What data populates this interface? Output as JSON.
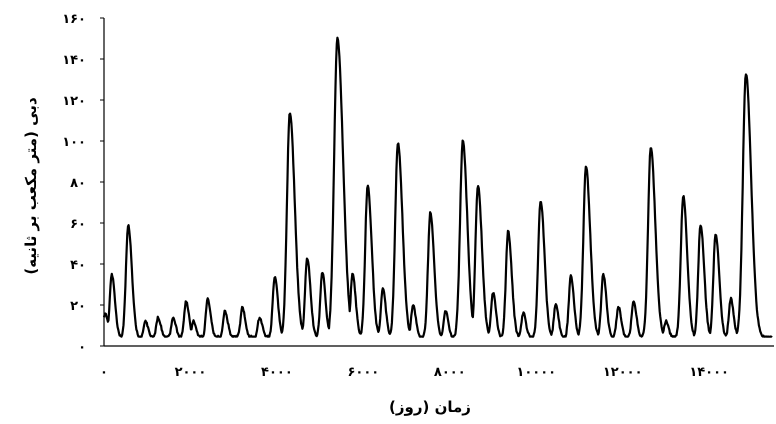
{
  "chart_data": {
    "type": "line",
    "xlabel": "زمان (روز)",
    "ylabel": "دبی (متر مکعب بر ثانیه)",
    "xlim": [
      0,
      15500
    ],
    "ylim": [
      0,
      160
    ],
    "x_ticks": [
      0,
      2000,
      4000,
      6000,
      8000,
      10000,
      12000,
      14000
    ],
    "x_tick_labels": [
      "۰",
      "۲۰۰۰",
      "۴۰۰۰",
      "۶۰۰۰",
      "۸۰۰۰",
      "۱۰۰۰۰",
      "۱۲۰۰۰",
      "۱۴۰۰۰"
    ],
    "y_ticks": [
      0,
      20,
      40,
      60,
      80,
      100,
      120,
      140,
      160
    ],
    "y_tick_labels": [
      "۰",
      "۲۰",
      "۴۰",
      "۶۰",
      "۸۰",
      "۱۰۰",
      "۱۲۰",
      "۱۴۰",
      "۱۶۰"
    ],
    "baseline": 4,
    "grid": false,
    "legend": "none",
    "line_color": "#000000",
    "series": [
      {
        "peaks": [
          [
            30,
            16
          ],
          [
            180,
            35
          ],
          [
            560,
            59
          ],
          [
            960,
            12
          ],
          [
            1250,
            14
          ],
          [
            1600,
            14
          ],
          [
            1900,
            22
          ],
          [
            2070,
            12
          ],
          [
            2400,
            23
          ],
          [
            2800,
            17
          ],
          [
            3200,
            19
          ],
          [
            3600,
            14
          ],
          [
            3950,
            34
          ],
          [
            4300,
            114
          ],
          [
            4700,
            43
          ],
          [
            5050,
            36
          ],
          [
            5400,
            150
          ],
          [
            5750,
            35
          ],
          [
            6100,
            78
          ],
          [
            6450,
            28
          ],
          [
            6800,
            99
          ],
          [
            7150,
            20
          ],
          [
            7550,
            65
          ],
          [
            7900,
            17
          ],
          [
            8300,
            100
          ],
          [
            8650,
            78
          ],
          [
            9000,
            26
          ],
          [
            9350,
            56
          ],
          [
            9700,
            16
          ],
          [
            10050,
            20
          ],
          [
            10100,
            71
          ],
          [
            10450,
            20
          ],
          [
            10800,
            34
          ],
          [
            11150,
            88
          ],
          [
            11550,
            35
          ],
          [
            11900,
            19
          ],
          [
            12250,
            22
          ],
          [
            12650,
            97
          ],
          [
            13000,
            12
          ],
          [
            13400,
            73
          ],
          [
            13800,
            59
          ],
          [
            14150,
            55
          ],
          [
            14500,
            23
          ],
          [
            14850,
            133
          ]
        ]
      }
    ]
  }
}
